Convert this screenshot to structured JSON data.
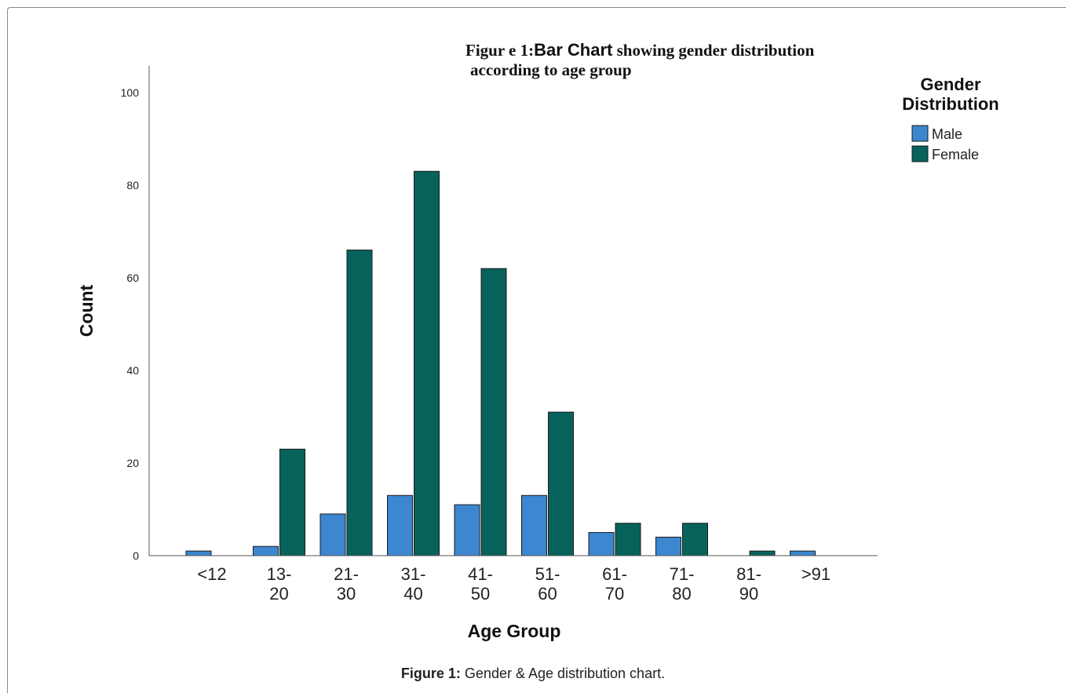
{
  "chart_data": {
    "type": "bar",
    "title_prefix": "Figur e 1:",
    "title_main": "Bar Chart",
    "title_suffix": " showing gender distribution",
    "title_line2": "according to age group",
    "xlabel": "Age Group",
    "ylabel": "Count",
    "ylim": [
      0,
      100
    ],
    "yticks": [
      "0",
      "20",
      "40",
      "60",
      "80",
      "100"
    ],
    "categories": [
      [
        "<12"
      ],
      [
        "13-",
        "20"
      ],
      [
        "21-",
        "30"
      ],
      [
        "31-",
        "40"
      ],
      [
        "41-",
        "50"
      ],
      [
        "51-",
        "60"
      ],
      [
        "61-",
        "70"
      ],
      [
        "71-",
        "80"
      ],
      [
        "81-",
        "90"
      ],
      [
        ">91"
      ]
    ],
    "legend_title": [
      "Gender",
      "Distribution"
    ],
    "legend_position": "top-right",
    "grid": false,
    "series": [
      {
        "name": "Male",
        "color": "#3d87d0",
        "values": [
          1,
          2,
          9,
          13,
          11,
          13,
          5,
          4,
          0,
          1
        ]
      },
      {
        "name": "Female",
        "color": "#08625c",
        "values": [
          0,
          23,
          66,
          83,
          62,
          31,
          7,
          7,
          1,
          0
        ]
      }
    ]
  },
  "caption": {
    "label": "Figure 1:",
    "text": " Gender & Age distribution chart."
  }
}
